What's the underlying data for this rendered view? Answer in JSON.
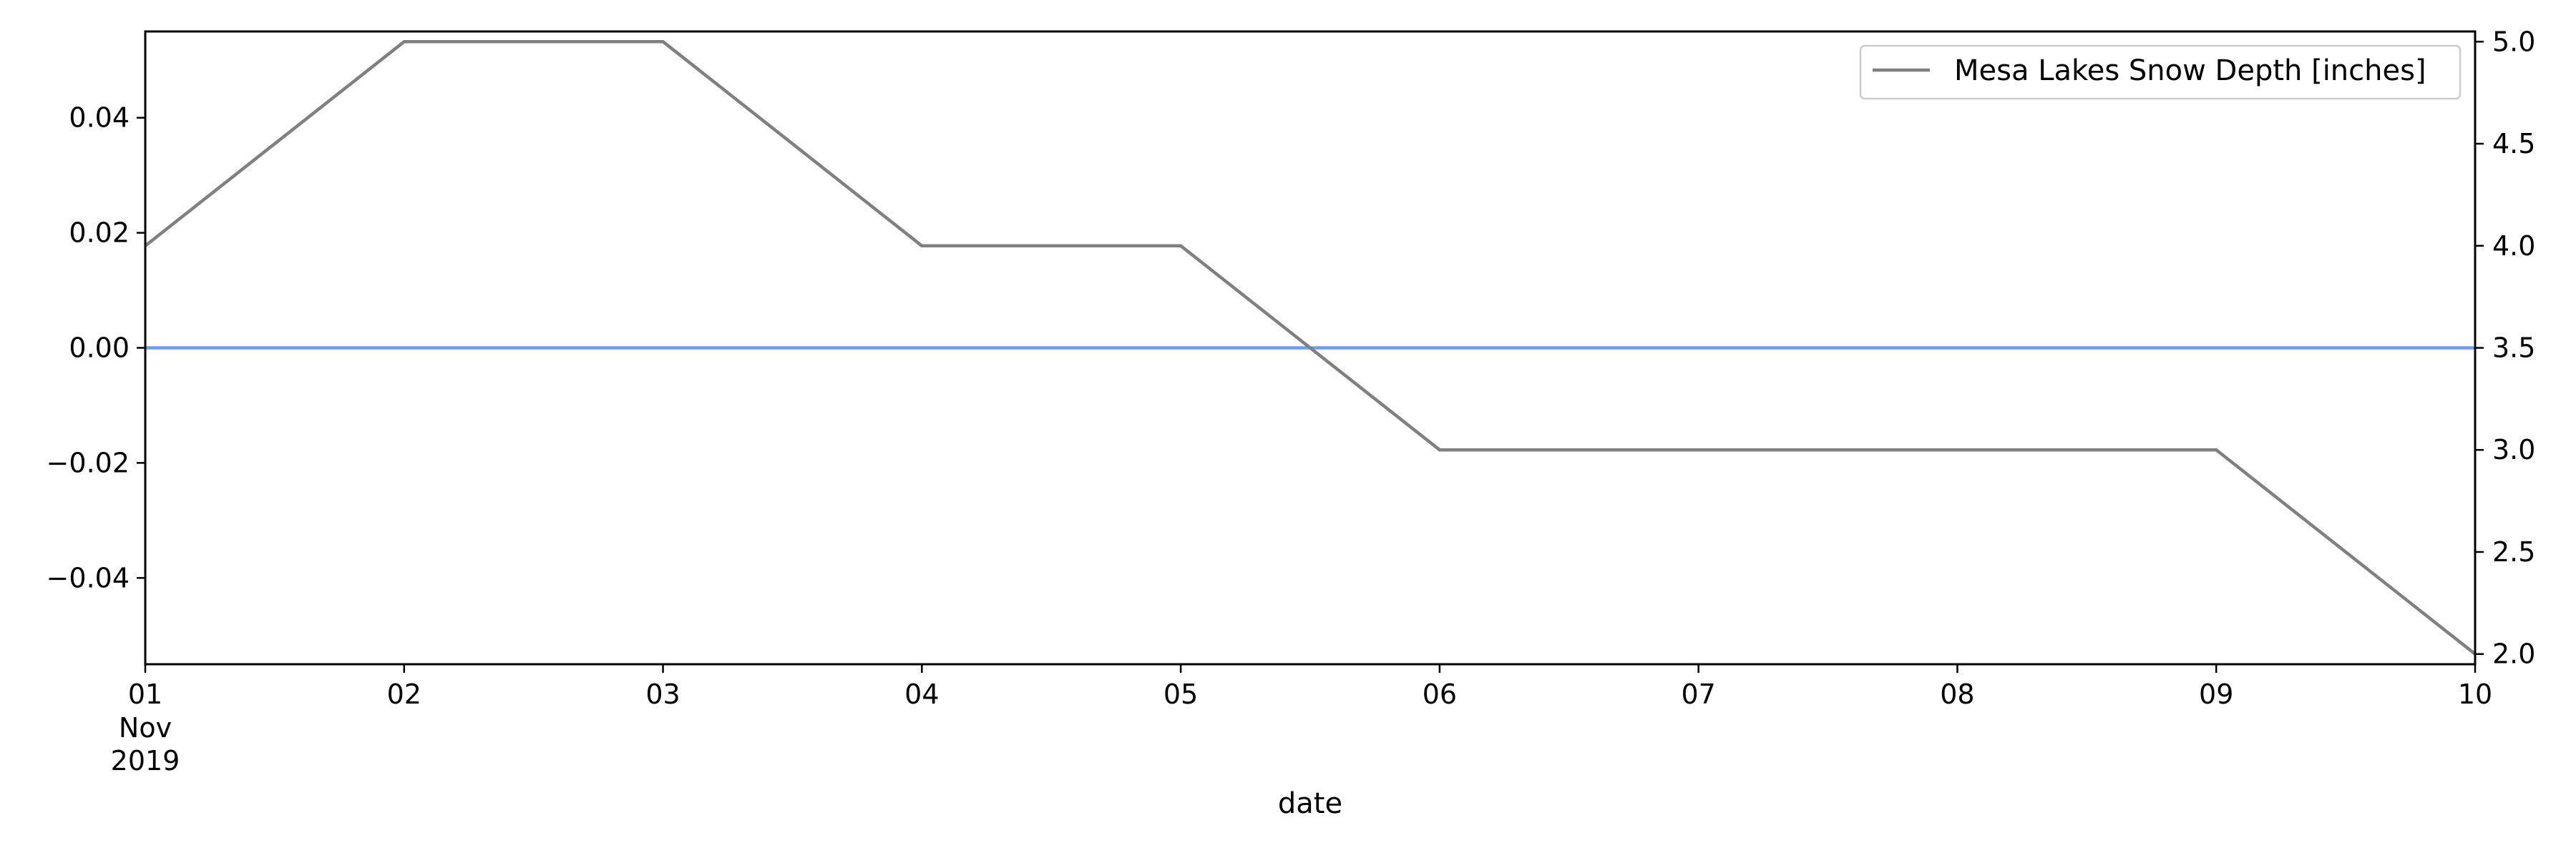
{
  "chart_data": {
    "type": "line",
    "xlabel": "date",
    "x": [
      "2019-11-01",
      "2019-11-02",
      "2019-11-03",
      "2019-11-04",
      "2019-11-05",
      "2019-11-06",
      "2019-11-07",
      "2019-11-08",
      "2019-11-09",
      "2019-11-10"
    ],
    "x_tick_labels": [
      "01",
      "02",
      "03",
      "04",
      "05",
      "06",
      "07",
      "08",
      "09",
      "10"
    ],
    "x_tick_sublabels": [
      "Nov",
      "2019"
    ],
    "left_axis": {
      "ylim": [
        -0.055,
        0.055
      ],
      "ticks": [
        -0.04,
        -0.02,
        0.0,
        0.02,
        0.04
      ],
      "tick_labels": [
        "−0.04",
        "−0.02",
        "0.00",
        "0.02",
        "0.04"
      ]
    },
    "right_axis": {
      "ylim": [
        1.95,
        5.05
      ],
      "ticks": [
        2.0,
        2.5,
        3.0,
        3.5,
        4.0,
        4.5,
        5.0
      ],
      "tick_labels": [
        "2.0",
        "2.5",
        "3.0",
        "3.5",
        "4.0",
        "4.5",
        "5.0"
      ]
    },
    "series": [
      {
        "axis": "left",
        "color": "#6d9eeb",
        "values": [
          0,
          0,
          0,
          0,
          0,
          0,
          0,
          0,
          0,
          0
        ]
      },
      {
        "name": "Mesa Lakes Snow Depth [inches]",
        "axis": "right",
        "color": "#808080",
        "values": [
          4,
          5,
          5,
          4,
          4,
          3,
          3,
          3,
          3,
          2
        ]
      }
    ],
    "legend": {
      "position": "top-right",
      "entries": [
        "Mesa Lakes Snow Depth [inches]"
      ]
    },
    "grid": false
  }
}
